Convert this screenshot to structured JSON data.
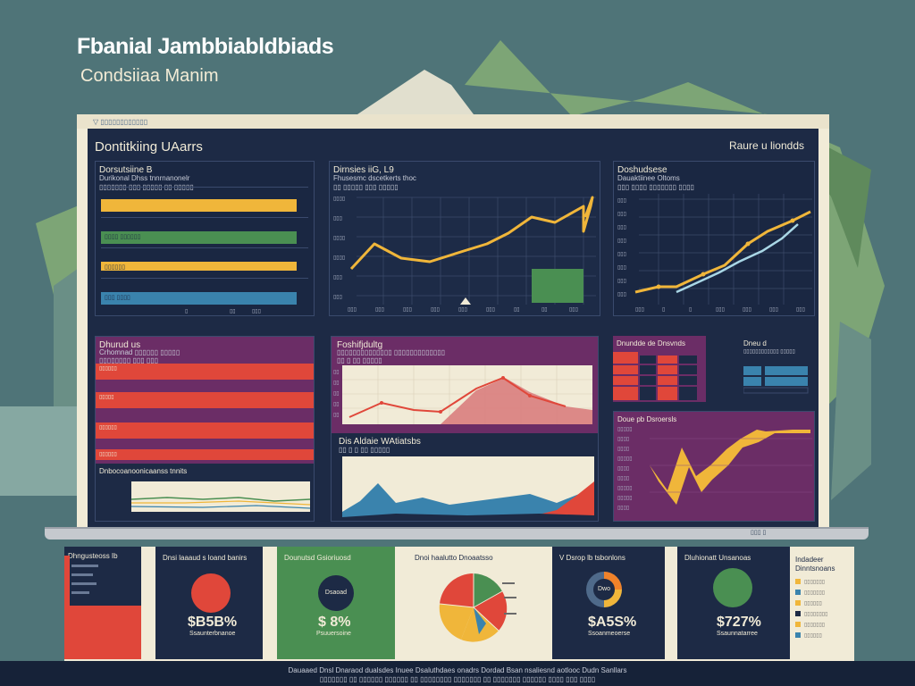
{
  "hero": {
    "title": "Fbanial Jambbiabldbiads",
    "subtitle": "Condsiiaa Manim"
  },
  "monitor": {
    "logo_text": "▽ ▯▯▯▯▯▯▯▯▯▯▯▯",
    "base_label": "▯▯▯ ▯"
  },
  "screen": {
    "title": "Dontitkiing UAarrs",
    "right_label": "Raure u liondds"
  },
  "panels": {
    "p1": {
      "title": "Dorsutsiine B",
      "sub": "Durikonal Dhss tnnrnanonelr",
      "sub2": "▯▯▯▯▯▯▯ ▯▯▯ ▯▯▯▯▯ ▯▯ ▯▯▯▯▯",
      "bars": [
        {
          "label": "",
          "value": 0.95,
          "color": "#f0b63a"
        },
        {
          "label": "▯▯▯▯ ▯▯▯▯▯▯",
          "value": 0.95,
          "color": "#4a8f52"
        },
        {
          "label": "▯▯▯▯▯▯",
          "value": 0.95,
          "color": "#f0b63a"
        },
        {
          "label": "▯▯▯ ▯▯▯▯",
          "value": 0.95,
          "color": "#3a83ad"
        }
      ],
      "ticks": [
        "▯",
        "▯▯",
        "▯▯▯"
      ]
    },
    "p2": {
      "title": "Dirnsies iiG, L9",
      "sub": "Fhusesmc dscetkerts thoc",
      "sub2": "▯▯ ▯▯▯▯▯ ▯▯▯ ▯▯▯▯▯",
      "ylabels": [
        "▯▯▯▯",
        "▯▯▯",
        "▯▯▯▯",
        "▯▯▯▯",
        "▯▯▯",
        "▯▯▯"
      ],
      "xlabels": [
        "▯▯▯",
        "▯▯▯",
        "▯▯▯",
        "▯▯▯",
        "▯▯▯",
        "▯▯▯",
        "▯▯",
        "▯▯",
        "▯▯▯"
      ]
    },
    "p3": {
      "title": "Doshudsese",
      "sub": "Dauaktiinee Oltoms",
      "sub2": "▯▯▯ ▯▯▯▯ ▯▯▯▯▯▯▯ ▯▯▯▯",
      "ylabels": [
        "▯▯▯",
        "▯▯▯",
        "▯▯▯",
        "▯▯▯",
        "▯▯▯",
        "▯▯▯",
        "▯▯▯",
        "▯▯▯"
      ],
      "xlabels": [
        "▯▯▯",
        "▯",
        "▯",
        "▯▯▯",
        "▯▯▯",
        "▯▯▯",
        "▯▯▯"
      ]
    },
    "p4": {
      "title": "Dhurud us",
      "sub": "Crhomnad ▯▯▯▯▯▯ ▯▯▯▯▯",
      "sub2": "▯▯▯▯▯▯▯▯ ▯▯▯ ▯▯▯",
      "bars": [
        "▯▯▯▯▯▯",
        "▯▯▯▯▯",
        "▯▯▯▯▯▯",
        "▯▯▯▯▯▯"
      ],
      "bottom_title": "Dnbocoanoonicaanss tnnits"
    },
    "p5": {
      "title": "Foshifjdultg",
      "sub": "▯▯▯▯▯▯▯▯▯▯▯▯▯▯ ▯▯▯▯▯▯▯▯▯▯▯▯▯",
      "sub2": "▯▯ ▯ ▯▯ ▯▯▯▯▯",
      "ylabels": [
        "▯▯",
        "▯▯",
        "▯▯",
        "▯▯",
        "▯▯"
      ],
      "bottom_title": "Dis Aldaie WAtiatsbs",
      "bottom_sub": "▯▯ ▯ ▯ ▯▯ ▯▯▯▯▯"
    },
    "p6": {
      "title": "Dnundde de Dnsvnds",
      "table_title": "Dneu d",
      "table_sub": "▯▯▯▯▯▯▯▯▯▯▯▯ ▯▯▯▯▯",
      "bottom_title": "Doue pb Dsroersls",
      "ylabels": [
        "▯▯▯▯▯",
        "▯▯▯▯",
        "▯▯▯▯",
        "▯▯▯▯▯",
        "▯▯▯▯",
        "▯▯▯▯",
        "▯▯▯▯▯",
        "▯▯▯▯▯",
        "▯▯▯▯"
      ]
    }
  },
  "cards": [
    {
      "title": "Dhngusteoss Ib",
      "bg": "#1d2a45"
    },
    {
      "title": "Dnsi laaaud s loand banirs",
      "value": "$B5B%",
      "sub": "Ssaunterbnanoe",
      "donut_color": "#e0473a",
      "bg": "#1d2a45"
    },
    {
      "title": "Dounutsd Gsioriuosd",
      "value": "$ 8%",
      "sub": "Psuuersoine",
      "center": "Dsaoad",
      "bg": "#4a8f52"
    },
    {
      "title": "Dnoi haalutto Dnoaatsso",
      "bg": "#f1ebd7"
    },
    {
      "title": "V Dsrop lb tsbonlons",
      "value": "$A5S%",
      "sub": "Ssoanmeoerse",
      "center": "Dwo",
      "bg": "#1d2a45"
    },
    {
      "title": "Dluhionatt Unsanoas",
      "value": "$727%",
      "sub": "Ssaunnatarree",
      "bg": "#1d2a45"
    },
    {
      "title": "Indadeer",
      "sub": "Dinntsnoans",
      "legend": [
        "▯▯▯▯▯▯▯",
        "▯▯▯▯▯▯▯",
        "▯▯▯▯▯▯",
        "▯▯▯▯▯▯▯▯",
        "▯▯▯▯▯▯▯",
        "▯▯▯▯▯▯"
      ]
    }
  ],
  "footer": {
    "line1": "Dauaaed Dnsl Dnaraod dualsdes Inuee Dsaluthdaes onadrs Dordad Bsan nsaliesnd aotlooc Dudn Sanllars",
    "line2": "▯▯▯▯▯▯▯ ▯▯ ▯▯▯▯▯▯ ▯▯▯▯▯▯ ▯▯ ▯▯▯▯▯▯▯▯ ▯▯▯▯▯▯▯ ▯▯ ▯▯▯▯▯▯▯ ▯▯▯▯▯▯ ▯▯▯▯ ▯▯▯ ▯▯▯▯"
  },
  "colors": {
    "yellow": "#f0b63a",
    "green": "#4a8f52",
    "blue": "#3a83ad",
    "red": "#e0473a",
    "navy": "#1d2a45",
    "cream": "#f1ebd7",
    "purple": "#6b2d66"
  }
}
